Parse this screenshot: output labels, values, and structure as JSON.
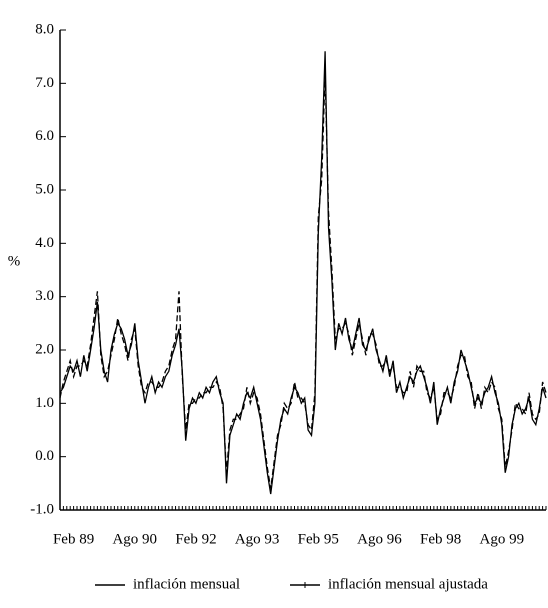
{
  "chart_data": {
    "type": "line",
    "y_label": "%",
    "categories": [
      null,
      null,
      null,
      null,
      "Feb 89",
      null,
      null,
      null,
      null,
      null,
      null,
      null,
      null,
      null,
      null,
      null,
      null,
      null,
      null,
      null,
      null,
      null,
      "Ago 90",
      null,
      null,
      null,
      null,
      null,
      null,
      null,
      null,
      null,
      null,
      null,
      null,
      null,
      null,
      null,
      null,
      null,
      "Feb 92",
      null,
      null,
      null,
      null,
      null,
      null,
      null,
      null,
      null,
      null,
      null,
      null,
      null,
      null,
      null,
      null,
      null,
      "Ago 93",
      null,
      null,
      null,
      null,
      null,
      null,
      null,
      null,
      null,
      null,
      null,
      null,
      null,
      null,
      null,
      null,
      null,
      "Feb 95",
      null,
      null,
      null,
      null,
      null,
      null,
      null,
      null,
      null,
      null,
      null,
      null,
      null,
      null,
      null,
      null,
      null,
      "Ago 96",
      null,
      null,
      null,
      null,
      null,
      null,
      null,
      null,
      null,
      null,
      null,
      null,
      null,
      null,
      null,
      null,
      null,
      "Feb 98",
      null,
      null,
      null,
      null,
      null,
      null,
      null,
      null,
      null,
      null,
      null,
      null,
      null,
      null,
      null,
      null,
      null,
      "Ago 99",
      null,
      null,
      null,
      null,
      null,
      null,
      null,
      null,
      null,
      null,
      null,
      null,
      null
    ],
    "series": [
      {
        "name": "inflación mensual",
        "color": "#000000",
        "dash": false,
        "values": [
          1.2,
          1.3,
          1.5,
          1.7,
          1.6,
          1.8,
          1.5,
          1.9,
          1.6,
          2.0,
          2.4,
          2.9,
          2.0,
          1.6,
          1.4,
          2.0,
          2.3,
          2.5,
          2.4,
          2.2,
          1.9,
          2.1,
          2.5,
          1.8,
          1.4,
          1.0,
          1.3,
          1.5,
          1.2,
          1.4,
          1.3,
          1.5,
          1.6,
          1.9,
          2.1,
          2.4,
          1.6,
          0.3,
          0.9,
          1.1,
          1.0,
          1.2,
          1.1,
          1.3,
          1.2,
          1.4,
          1.5,
          1.2,
          1.0,
          -0.5,
          0.4,
          0.6,
          0.8,
          0.7,
          1.0,
          1.2,
          1.1,
          1.3,
          1.0,
          0.7,
          0.2,
          -0.3,
          -0.7,
          -0.2,
          0.3,
          0.7,
          0.9,
          0.8,
          1.1,
          1.3,
          1.2,
          1.0,
          1.1,
          0.5,
          0.4,
          1.0,
          4.2,
          5.6,
          7.6,
          4.3,
          3.3,
          2.0,
          2.5,
          2.3,
          2.6,
          2.2,
          2.0,
          2.3,
          2.6,
          2.1,
          2.0,
          2.2,
          2.4,
          2.0,
          1.8,
          1.6,
          1.9,
          1.5,
          1.8,
          1.2,
          1.4,
          1.1,
          1.3,
          1.5,
          1.4,
          1.6,
          1.7,
          1.5,
          1.3,
          1.0,
          1.4,
          0.6,
          0.9,
          1.1,
          1.3,
          1.0,
          1.4,
          1.6,
          2.0,
          1.8,
          1.6,
          1.3,
          1.0,
          1.1,
          1.0,
          1.2,
          1.3,
          1.5,
          1.2,
          1.0,
          0.6,
          -0.3,
          0.0,
          0.6,
          0.9,
          1.0,
          0.8,
          0.9,
          1.1,
          0.7,
          0.6,
          0.9,
          1.3,
          1.1
        ]
      },
      {
        "name": "inflación mensual ajustada",
        "color": "#000000",
        "dash": true,
        "values": [
          1.1,
          1.4,
          1.6,
          1.8,
          1.5,
          1.7,
          1.7,
          1.8,
          1.7,
          2.1,
          2.6,
          3.1,
          1.9,
          1.5,
          1.6,
          1.9,
          2.2,
          2.6,
          2.3,
          2.1,
          1.8,
          2.2,
          2.4,
          1.7,
          1.3,
          1.2,
          1.4,
          1.4,
          1.3,
          1.3,
          1.4,
          1.6,
          1.7,
          2.0,
          2.2,
          3.1,
          1.5,
          0.5,
          1.0,
          1.0,
          1.1,
          1.1,
          1.2,
          1.2,
          1.3,
          1.3,
          1.4,
          1.3,
          0.9,
          -0.3,
          0.5,
          0.7,
          0.7,
          0.8,
          0.9,
          1.3,
          1.0,
          1.2,
          1.1,
          0.8,
          0.3,
          -0.2,
          -0.6,
          -0.1,
          0.4,
          0.6,
          1.0,
          0.9,
          1.0,
          1.4,
          1.1,
          1.1,
          1.0,
          0.6,
          0.5,
          1.2,
          4.5,
          5.2,
          7.2,
          4.6,
          3.5,
          2.2,
          2.4,
          2.4,
          2.5,
          2.3,
          1.9,
          2.2,
          2.5,
          2.2,
          1.9,
          2.3,
          2.3,
          2.1,
          1.7,
          1.7,
          1.8,
          1.6,
          1.7,
          1.3,
          1.3,
          1.2,
          1.2,
          1.6,
          1.3,
          1.7,
          1.6,
          1.6,
          1.2,
          1.1,
          1.3,
          0.7,
          0.8,
          1.2,
          1.2,
          1.1,
          1.3,
          1.7,
          1.9,
          1.9,
          1.5,
          1.4,
          0.9,
          1.2,
          0.9,
          1.3,
          1.2,
          1.4,
          1.3,
          0.9,
          0.7,
          -0.2,
          0.1,
          0.5,
          1.0,
          0.9,
          0.9,
          0.8,
          1.2,
          0.8,
          0.7,
          0.8,
          1.4,
          1.2
        ]
      }
    ],
    "ylim": [
      -1,
      8
    ],
    "yticks": [
      {
        "value": 8,
        "label": "8.0"
      },
      {
        "value": 7,
        "label": "7.0"
      },
      {
        "value": 6,
        "label": "6.0"
      },
      {
        "value": 5,
        "label": "5.0"
      },
      {
        "value": 4,
        "label": "4.0"
      },
      {
        "value": 3,
        "label": "3.0"
      },
      {
        "value": 2,
        "label": "2.0"
      },
      {
        "value": 1,
        "label": "1.0"
      },
      {
        "value": 0,
        "label": "0.0"
      },
      {
        "value": -1,
        "label": "-1.0"
      }
    ],
    "grid": false,
    "legend": "bottom"
  }
}
